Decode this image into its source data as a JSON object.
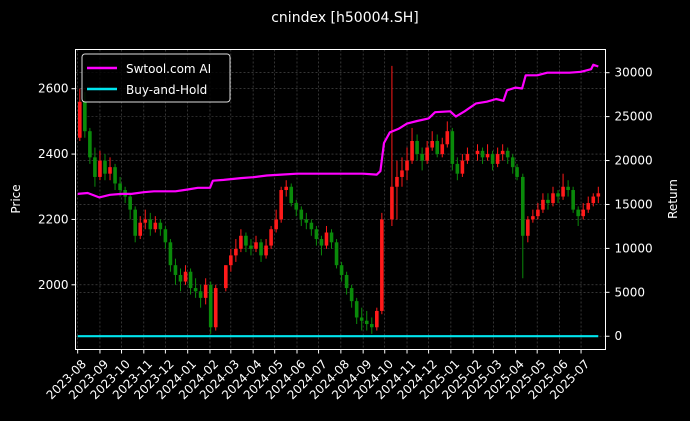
{
  "chart_data": {
    "type": "candlestick+line",
    "title": "cnindex [h50004.SH]",
    "ylabel_left": "Price",
    "ylabel_right": "Return",
    "xlabel": "",
    "ylim_left": [
      1802,
      2720
    ],
    "ylim_right": [
      -1510,
      32640
    ],
    "xlim": [
      "2023-07-29",
      "2025-08-04"
    ],
    "y_ticks_left": [
      2000,
      2200,
      2400,
      2600
    ],
    "y_ticks_right": [
      0,
      5000,
      10000,
      15000,
      20000,
      25000,
      30000
    ],
    "x_ticks": [
      "2023-08",
      "2023-09",
      "2023-10",
      "2023-11",
      "2023-12",
      "2024-01",
      "2024-02",
      "2024-03",
      "2024-04",
      "2024-05",
      "2024-06",
      "2024-07",
      "2024-08",
      "2024-09",
      "2024-10",
      "2024-11",
      "2024-12",
      "2025-01",
      "2025-02",
      "2025-03",
      "2025-04",
      "2025-05",
      "2025-06",
      "2025-07"
    ],
    "grid": true,
    "legend_position": "top-left",
    "colors": {
      "up": "#ff1a1a",
      "down": "#0a8a0a",
      "strategy": "#ff00ff",
      "buy_hold": "#00e5ee",
      "background": "#000000",
      "grid": "#555555"
    },
    "candles_columns": [
      "date",
      "open",
      "high",
      "low",
      "close"
    ],
    "candles": [
      [
        "2023-08-04",
        2450,
        2600,
        2440,
        2560
      ],
      [
        "2023-08-11",
        2560,
        2590,
        2450,
        2470
      ],
      [
        "2023-08-18",
        2470,
        2480,
        2370,
        2390
      ],
      [
        "2023-08-25",
        2390,
        2420,
        2300,
        2330
      ],
      [
        "2023-09-01",
        2330,
        2410,
        2320,
        2380
      ],
      [
        "2023-09-08",
        2380,
        2400,
        2320,
        2340
      ],
      [
        "2023-09-15",
        2340,
        2390,
        2320,
        2360
      ],
      [
        "2023-09-22",
        2360,
        2370,
        2290,
        2310
      ],
      [
        "2023-09-29",
        2310,
        2330,
        2270,
        2290
      ],
      [
        "2023-10-06",
        2290,
        2300,
        2250,
        2270
      ],
      [
        "2023-10-13",
        2270,
        2280,
        2200,
        2230
      ],
      [
        "2023-10-20",
        2230,
        2240,
        2130,
        2150
      ],
      [
        "2023-10-27",
        2150,
        2210,
        2140,
        2190
      ],
      [
        "2023-11-03",
        2190,
        2230,
        2170,
        2200
      ],
      [
        "2023-11-10",
        2200,
        2220,
        2150,
        2170
      ],
      [
        "2023-11-17",
        2170,
        2210,
        2160,
        2190
      ],
      [
        "2023-11-24",
        2190,
        2200,
        2150,
        2170
      ],
      [
        "2023-12-01",
        2170,
        2180,
        2110,
        2130
      ],
      [
        "2023-12-08",
        2130,
        2140,
        2040,
        2060
      ],
      [
        "2023-12-15",
        2060,
        2080,
        2000,
        2030
      ],
      [
        "2023-12-22",
        2030,
        2050,
        1980,
        2010
      ],
      [
        "2023-12-29",
        2010,
        2060,
        2000,
        2040
      ],
      [
        "2024-01-05",
        2040,
        2050,
        1970,
        1990
      ],
      [
        "2024-01-12",
        1990,
        2020,
        1960,
        1980
      ],
      [
        "2024-01-19",
        1980,
        2000,
        1930,
        1960
      ],
      [
        "2024-01-26",
        1960,
        2020,
        1940,
        2000
      ],
      [
        "2024-02-02",
        2000,
        2010,
        1850,
        1870
      ],
      [
        "2024-02-09",
        1870,
        2000,
        1860,
        1990
      ],
      [
        "2024-02-23",
        1990,
        2060,
        1980,
        2060
      ],
      [
        "2024-03-01",
        2060,
        2110,
        2040,
        2090
      ],
      [
        "2024-03-08",
        2090,
        2140,
        2070,
        2110
      ],
      [
        "2024-03-15",
        2110,
        2170,
        2100,
        2150
      ],
      [
        "2024-03-22",
        2150,
        2160,
        2100,
        2120
      ],
      [
        "2024-03-29",
        2120,
        2140,
        2090,
        2110
      ],
      [
        "2024-04-05",
        2110,
        2150,
        2100,
        2130
      ],
      [
        "2024-04-12",
        2130,
        2140,
        2070,
        2090
      ],
      [
        "2024-04-19",
        2090,
        2140,
        2080,
        2120
      ],
      [
        "2024-04-26",
        2120,
        2180,
        2110,
        2170
      ],
      [
        "2024-05-03",
        2170,
        2230,
        2160,
        2200
      ],
      [
        "2024-05-10",
        2200,
        2300,
        2190,
        2290
      ],
      [
        "2024-05-17",
        2290,
        2320,
        2270,
        2300
      ],
      [
        "2024-05-24",
        2300,
        2310,
        2240,
        2250
      ],
      [
        "2024-05-31",
        2250,
        2260,
        2210,
        2230
      ],
      [
        "2024-06-07",
        2230,
        2240,
        2180,
        2200
      ],
      [
        "2024-06-14",
        2200,
        2220,
        2170,
        2190
      ],
      [
        "2024-06-21",
        2190,
        2200,
        2150,
        2170
      ],
      [
        "2024-06-28",
        2170,
        2180,
        2120,
        2140
      ],
      [
        "2024-07-05",
        2140,
        2150,
        2090,
        2120
      ],
      [
        "2024-07-12",
        2120,
        2180,
        2110,
        2160
      ],
      [
        "2024-07-19",
        2160,
        2170,
        2110,
        2130
      ],
      [
        "2024-07-26",
        2130,
        2140,
        2050,
        2060
      ],
      [
        "2024-08-02",
        2060,
        2070,
        2010,
        2030
      ],
      [
        "2024-08-09",
        2030,
        2040,
        1970,
        1990
      ],
      [
        "2024-08-16",
        1990,
        2000,
        1930,
        1950
      ],
      [
        "2024-08-23",
        1950,
        1960,
        1880,
        1900
      ],
      [
        "2024-08-30",
        1900,
        1930,
        1860,
        1890
      ],
      [
        "2024-09-06",
        1890,
        1920,
        1860,
        1880
      ],
      [
        "2024-09-13",
        1880,
        1900,
        1850,
        1870
      ],
      [
        "2024-09-20",
        1870,
        1930,
        1860,
        1920
      ],
      [
        "2024-09-27",
        1920,
        2220,
        1910,
        2200
      ],
      [
        "2024-10-11",
        2200,
        2670,
        2180,
        2300
      ],
      [
        "2024-10-18",
        2300,
        2380,
        2200,
        2330
      ],
      [
        "2024-10-25",
        2330,
        2390,
        2300,
        2350
      ],
      [
        "2024-11-01",
        2350,
        2420,
        2320,
        2380
      ],
      [
        "2024-11-08",
        2380,
        2480,
        2370,
        2440
      ],
      [
        "2024-11-15",
        2440,
        2460,
        2380,
        2400
      ],
      [
        "2024-11-22",
        2400,
        2420,
        2350,
        2380
      ],
      [
        "2024-11-29",
        2380,
        2440,
        2370,
        2420
      ],
      [
        "2024-12-06",
        2420,
        2470,
        2410,
        2440
      ],
      [
        "2024-12-13",
        2440,
        2460,
        2390,
        2400
      ],
      [
        "2024-12-20",
        2400,
        2450,
        2390,
        2430
      ],
      [
        "2024-12-27",
        2430,
        2500,
        2420,
        2470
      ],
      [
        "2025-01-03",
        2470,
        2480,
        2350,
        2370
      ],
      [
        "2025-01-10",
        2370,
        2390,
        2320,
        2340
      ],
      [
        "2025-01-17",
        2340,
        2400,
        2330,
        2380
      ],
      [
        "2025-01-24",
        2380,
        2420,
        2370,
        2400
      ],
      [
        "2025-02-07",
        2400,
        2430,
        2380,
        2410
      ],
      [
        "2025-02-14",
        2410,
        2420,
        2370,
        2390
      ],
      [
        "2025-02-21",
        2390,
        2430,
        2380,
        2400
      ],
      [
        "2025-02-28",
        2400,
        2410,
        2350,
        2370
      ],
      [
        "2025-03-07",
        2370,
        2420,
        2360,
        2400
      ],
      [
        "2025-03-14",
        2400,
        2430,
        2380,
        2410
      ],
      [
        "2025-03-21",
        2410,
        2420,
        2370,
        2390
      ],
      [
        "2025-03-28",
        2390,
        2400,
        2340,
        2360
      ],
      [
        "2025-04-03",
        2360,
        2370,
        2320,
        2330
      ],
      [
        "2025-04-11",
        2330,
        2340,
        2020,
        2150
      ],
      [
        "2025-04-18",
        2150,
        2210,
        2130,
        2200
      ],
      [
        "2025-04-25",
        2200,
        2230,
        2190,
        2210
      ],
      [
        "2025-05-02",
        2210,
        2250,
        2200,
        2230
      ],
      [
        "2025-05-09",
        2230,
        2280,
        2220,
        2260
      ],
      [
        "2025-05-16",
        2260,
        2280,
        2230,
        2250
      ],
      [
        "2025-05-23",
        2250,
        2300,
        2240,
        2280
      ],
      [
        "2025-05-30",
        2280,
        2290,
        2250,
        2270
      ],
      [
        "2025-06-06",
        2270,
        2340,
        2260,
        2300
      ],
      [
        "2025-06-13",
        2300,
        2320,
        2270,
        2290
      ],
      [
        "2025-06-20",
        2290,
        2300,
        2220,
        2230
      ],
      [
        "2025-06-27",
        2230,
        2240,
        2180,
        2210
      ],
      [
        "2025-07-04",
        2210,
        2250,
        2200,
        2230
      ],
      [
        "2025-07-11",
        2230,
        2270,
        2220,
        2250
      ],
      [
        "2025-07-18",
        2250,
        2280,
        2240,
        2270
      ],
      [
        "2025-07-25",
        2270,
        2300,
        2250,
        2280
      ]
    ],
    "series": [
      {
        "name": "Swtool.com AI",
        "axis": "right",
        "points": [
          [
            "2023-08-01",
            16200
          ],
          [
            "2023-08-15",
            16300
          ],
          [
            "2023-08-31",
            15800
          ],
          [
            "2023-09-15",
            16100
          ],
          [
            "2023-10-01",
            16200
          ],
          [
            "2023-10-15",
            16200
          ],
          [
            "2023-11-01",
            16400
          ],
          [
            "2023-11-15",
            16500
          ],
          [
            "2023-12-01",
            16500
          ],
          [
            "2023-12-15",
            16500
          ],
          [
            "2024-01-01",
            16700
          ],
          [
            "2024-01-15",
            16900
          ],
          [
            "2024-02-01",
            16900
          ],
          [
            "2024-02-05",
            17700
          ],
          [
            "2024-02-20",
            17800
          ],
          [
            "2024-03-15",
            18000
          ],
          [
            "2024-04-01",
            18100
          ],
          [
            "2024-04-20",
            18300
          ],
          [
            "2024-05-10",
            18400
          ],
          [
            "2024-06-01",
            18500
          ],
          [
            "2024-07-01",
            18500
          ],
          [
            "2024-08-01",
            18500
          ],
          [
            "2024-09-01",
            18500
          ],
          [
            "2024-09-20",
            18400
          ],
          [
            "2024-09-25",
            18800
          ],
          [
            "2024-09-30",
            22000
          ],
          [
            "2024-10-08",
            23200
          ],
          [
            "2024-10-20",
            23600
          ],
          [
            "2024-11-01",
            24200
          ],
          [
            "2024-11-15",
            24500
          ],
          [
            "2024-12-01",
            24800
          ],
          [
            "2024-12-10",
            25500
          ],
          [
            "2024-12-31",
            25600
          ],
          [
            "2025-01-08",
            25000
          ],
          [
            "2025-01-20",
            25600
          ],
          [
            "2025-02-05",
            26500
          ],
          [
            "2025-02-20",
            26700
          ],
          [
            "2025-03-05",
            27000
          ],
          [
            "2025-03-15",
            26800
          ],
          [
            "2025-03-20",
            28000
          ],
          [
            "2025-04-01",
            28300
          ],
          [
            "2025-04-10",
            28200
          ],
          [
            "2025-04-15",
            29700
          ],
          [
            "2025-05-01",
            29700
          ],
          [
            "2025-05-15",
            30000
          ],
          [
            "2025-06-15",
            30000
          ],
          [
            "2025-07-01",
            30100
          ],
          [
            "2025-07-15",
            30400
          ],
          [
            "2025-07-18",
            30900
          ],
          [
            "2025-07-25",
            30700
          ]
        ]
      },
      {
        "name": "Buy-and-Hold",
        "axis": "right",
        "points": [
          [
            "2023-08-01",
            0
          ],
          [
            "2025-07-25",
            0
          ]
        ]
      }
    ]
  }
}
